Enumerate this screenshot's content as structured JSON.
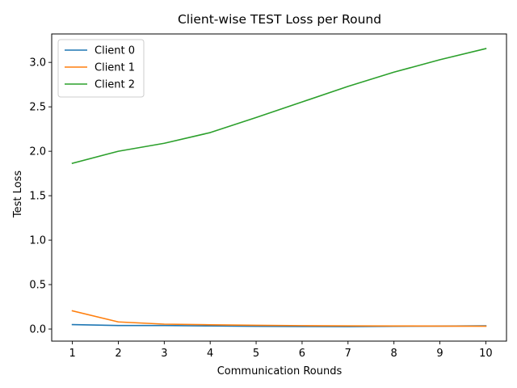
{
  "chart_data": {
    "type": "line",
    "title": "Client-wise TEST Loss per Round",
    "xlabel": "Communication Rounds",
    "ylabel": "Test Loss",
    "x": [
      1,
      2,
      3,
      4,
      5,
      6,
      7,
      8,
      9,
      10
    ],
    "xlim": [
      0.55,
      10.45
    ],
    "ylim": [
      -0.136,
      3.32
    ],
    "xticks": [
      1,
      2,
      3,
      4,
      5,
      6,
      7,
      8,
      9,
      10
    ],
    "yticks": [
      0.0,
      0.5,
      1.0,
      1.5,
      2.0,
      2.5,
      3.0
    ],
    "ytick_labels": [
      "0.0",
      "0.5",
      "1.0",
      "1.5",
      "2.0",
      "2.5",
      "3.0"
    ],
    "grid": false,
    "legend_position": "top-left",
    "series": [
      {
        "name": "Client 0",
        "color": "#1f77b4",
        "values": [
          0.05,
          0.04,
          0.04,
          0.035,
          0.03,
          0.028,
          0.027,
          0.03,
          0.033,
          0.036
        ]
      },
      {
        "name": "Client 1",
        "color": "#ff7f0e",
        "values": [
          0.205,
          0.08,
          0.055,
          0.048,
          0.042,
          0.038,
          0.035,
          0.034,
          0.033,
          0.032
        ]
      },
      {
        "name": "Client 2",
        "color": "#2ca02c",
        "values": [
          1.865,
          2.0,
          2.09,
          2.21,
          2.38,
          2.555,
          2.73,
          2.89,
          3.03,
          3.155
        ]
      }
    ]
  }
}
